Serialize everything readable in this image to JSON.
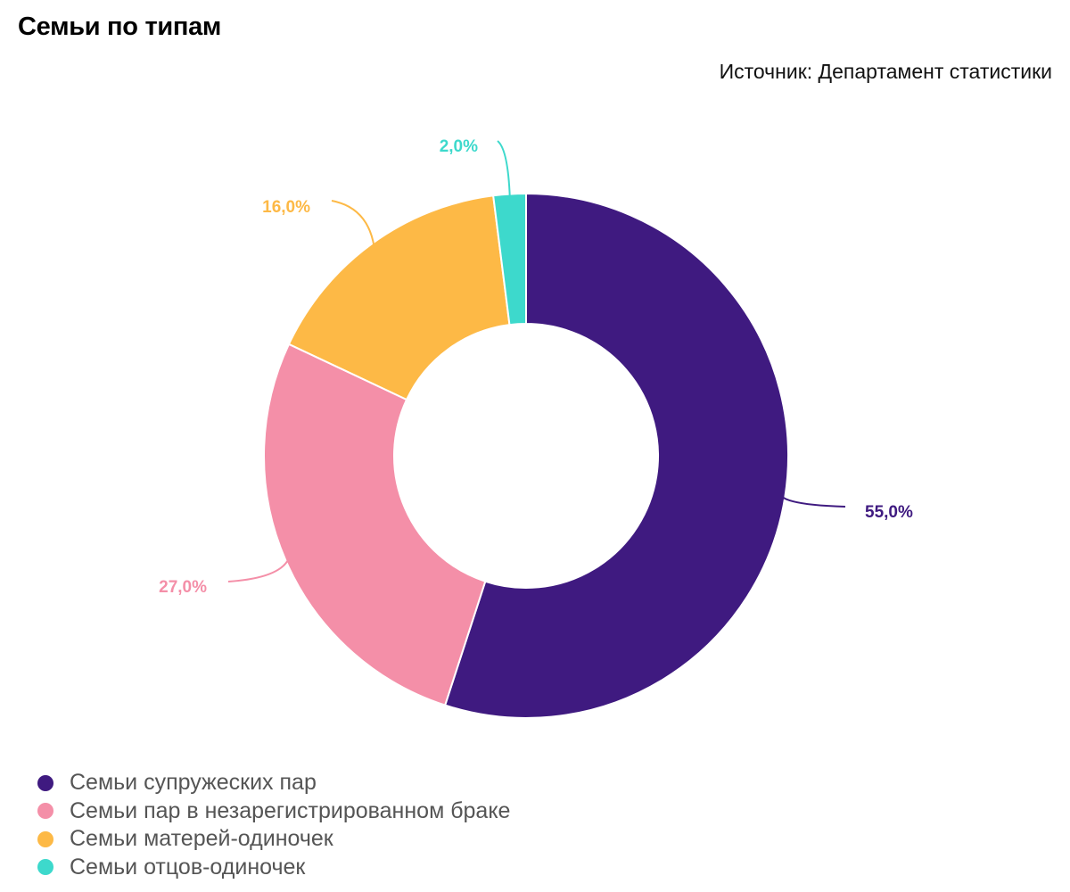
{
  "header": {
    "title": "Семьи по типам",
    "source": "Источник: Департамент статистики"
  },
  "chart_data": {
    "type": "pie",
    "donut": true,
    "categories": [
      "Семьи супружеских пар",
      "Семьи пар в незарегистрированном браке",
      "Семьи матерей-одиночек",
      "Семьи отцов-одиночек"
    ],
    "values": [
      55.0,
      27.0,
      16.0,
      2.0
    ],
    "data_labels": [
      "55,0%",
      "27,0%",
      "16,0%",
      "2,0%"
    ],
    "colors": [
      "#3f1a80",
      "#f48fa8",
      "#fdb946",
      "#3dd9cc"
    ],
    "legend_position": "bottom-left"
  }
}
